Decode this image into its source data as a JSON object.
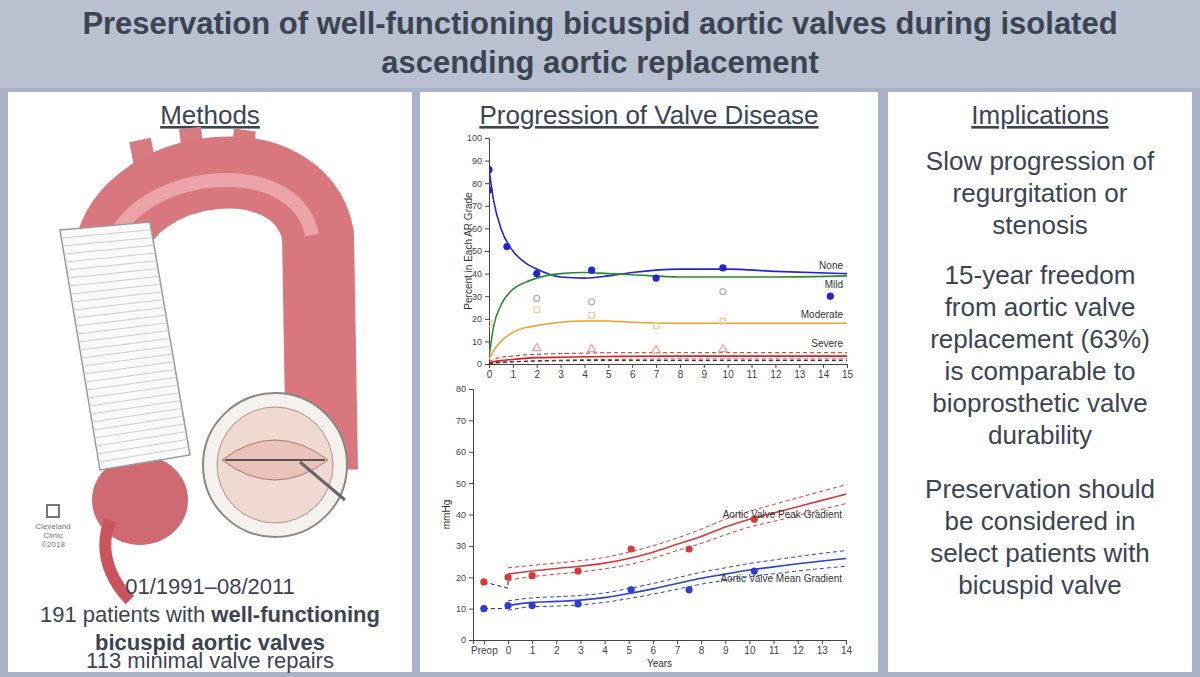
{
  "header": {
    "title": [
      "Preservation of well-functioning bicuspid aortic valves during isolated",
      "ascending aortic replacement"
    ]
  },
  "methods": {
    "heading": "Methods",
    "credit": [
      "Cleveland",
      "Clinic",
      "©2018"
    ],
    "lines": [
      [
        {
          "text": "01/1991–08/2011",
          "bold": false
        }
      ],
      [
        {
          "text": "191 patients with ",
          "bold": false
        },
        {
          "text": "well-functioning",
          "bold": true
        }
      ],
      [
        {
          "text": "bicuspid aortic valves",
          "bold": true
        }
      ],
      [
        {
          "text": "113 minimal valve repairs",
          "bold": false
        }
      ]
    ]
  },
  "chart_panel": {
    "heading": "Progression of Valve Disease"
  },
  "chart_data": [
    {
      "type": "line",
      "y_label": "Percent in Each AR Grade",
      "xlim": [
        0,
        15
      ],
      "xticks": [
        0,
        1,
        2,
        3,
        4,
        5,
        6,
        7,
        8,
        9,
        10,
        11,
        12,
        13,
        14,
        15
      ],
      "ylim": [
        0,
        100
      ],
      "yticks": [
        0,
        10,
        20,
        30,
        40,
        50,
        60,
        70,
        80,
        90,
        100
      ],
      "grid": false,
      "series": [
        {
          "name": "None",
          "color": "#2424d0",
          "line_style": "solid",
          "x": [
            0,
            0.2,
            0.5,
            1,
            1.5,
            2,
            3,
            4,
            5,
            6,
            8,
            10,
            12,
            15
          ],
          "values": [
            86,
            72,
            60,
            50,
            45,
            42,
            38.5,
            38,
            39,
            40.5,
            42,
            42,
            41,
            40
          ]
        },
        {
          "name": "Mild",
          "color": "#2e8b2e",
          "line_style": "solid",
          "x": [
            0,
            0.2,
            0.5,
            1,
            1.5,
            2,
            3,
            4,
            5,
            6,
            8,
            10,
            12,
            15
          ],
          "values": [
            3,
            17,
            26,
            33,
            36,
            38,
            40,
            40.5,
            40,
            39.5,
            38.5,
            38.5,
            38.5,
            39
          ]
        },
        {
          "name": "Moderate",
          "color": "#f0a030",
          "line_style": "solid",
          "x": [
            0,
            0.2,
            0.5,
            1,
            1.5,
            2,
            3,
            4,
            5,
            6,
            8,
            10,
            12,
            15
          ],
          "values": [
            2,
            6,
            10,
            14,
            16,
            17,
            18.5,
            19,
            19,
            18.5,
            18,
            18,
            18,
            18
          ]
        },
        {
          "name": "Severe",
          "color": "#d42020",
          "line_style": "solid",
          "x": [
            0,
            0.2,
            0.5,
            1,
            1.5,
            2,
            3,
            4,
            5,
            6,
            8,
            10,
            12,
            15
          ],
          "values": [
            0.5,
            1,
            1.5,
            2,
            2.5,
            2.8,
            3,
            3.2,
            3.3,
            3.4,
            3.5,
            3.5,
            3.5,
            3.5
          ]
        },
        {
          "color": "#d42020",
          "line_style": "dashed",
          "x": [
            0,
            0.2,
            0.5,
            1,
            1.5,
            2,
            3,
            4,
            5,
            6,
            8,
            10,
            12,
            15
          ],
          "values": [
            1,
            2,
            3,
            3.5,
            4,
            4.3,
            4.6,
            4.8,
            5,
            5,
            5,
            5,
            5,
            5
          ]
        },
        {
          "color": "#d42020",
          "line_style": "dashed",
          "x": [
            0,
            0.2,
            0.5,
            1,
            1.5,
            2,
            3,
            4,
            5,
            6,
            8,
            10,
            12,
            15
          ],
          "values": [
            0,
            0.3,
            0.6,
            0.9,
            1.2,
            1.4,
            1.7,
            1.9,
            2,
            2.1,
            2.2,
            2.2,
            2.2,
            2.2
          ]
        },
        {
          "color": "#222222",
          "line_style": "dashed",
          "x": [
            0,
            0.2,
            0.5,
            1,
            1.5,
            2,
            3,
            4,
            5,
            6,
            8,
            10,
            12,
            15
          ],
          "values": [
            0,
            0.5,
            0.8,
            1,
            1.2,
            1.3,
            1.4,
            1.5,
            1.5,
            1.5,
            1.5,
            1.5,
            1.5,
            1.5
          ]
        },
        {
          "type": "scatter",
          "marker": "circle",
          "color": "#2424d0",
          "x": [
            0,
            0,
            0.75,
            2,
            4.3,
            7,
            9.8,
            14.3
          ],
          "values": [
            86,
            77,
            52,
            40,
            41.5,
            38,
            42.5,
            30
          ]
        },
        {
          "type": "scatter",
          "marker": "circle-open",
          "color": "#a9b8a4",
          "x": [
            2,
            4.3,
            9.8
          ],
          "values": [
            29,
            27.5,
            32
          ]
        },
        {
          "type": "scatter",
          "marker": "square-open",
          "color": "#f3c98e",
          "x": [
            0,
            2,
            4.3,
            7,
            9.8
          ],
          "values": [
            18,
            24,
            21.5,
            17,
            19
          ]
        },
        {
          "type": "scatter",
          "marker": "triangle-open",
          "color": "#eea0a0",
          "x": [
            2,
            4.3,
            7,
            9.8
          ],
          "values": [
            7,
            6.5,
            6,
            6.5
          ]
        }
      ]
    },
    {
      "type": "line",
      "x_label": "Years",
      "y_label": "mmHg",
      "xlim": [
        -1.45,
        14
      ],
      "xticks": [
        {
          "value": -1,
          "label": "Preop"
        },
        0,
        1,
        2,
        3,
        4,
        5,
        6,
        7,
        8,
        9,
        10,
        11,
        12,
        13,
        14
      ],
      "ylim": [
        0,
        80
      ],
      "yticks": [
        0,
        10,
        20,
        30,
        40,
        50,
        60,
        70,
        80
      ],
      "grid": false,
      "series": [
        {
          "name": "Aortic Valve Peak Gradient",
          "color": "#d43a3a",
          "line_style": "solid",
          "x": [
            0,
            1,
            2,
            3,
            4,
            5,
            6,
            7,
            8,
            9,
            10,
            11,
            12,
            13,
            14
          ],
          "values": [
            21,
            22,
            22.8,
            23.5,
            24.5,
            26,
            28,
            30.5,
            33,
            36,
            38.5,
            40.5,
            42.5,
            44.5,
            46.5
          ]
        },
        {
          "color": "#d43a3a",
          "line_style": "dashed",
          "x": [
            0,
            1,
            2,
            3,
            4,
            5,
            6,
            7,
            8,
            9,
            10,
            11,
            12,
            13,
            14
          ],
          "values": [
            23,
            23.8,
            24.5,
            25.3,
            26.3,
            28,
            30,
            32.5,
            35.3,
            38.5,
            41,
            43.2,
            45.3,
            47.4,
            49.5
          ]
        },
        {
          "color": "#d43a3a",
          "line_style": "dashed",
          "x": [
            0,
            1,
            2,
            3,
            4,
            5,
            6,
            7,
            8,
            9,
            10,
            11,
            12,
            13,
            14
          ],
          "values": [
            19,
            20.2,
            21,
            21.7,
            22.7,
            24,
            26,
            28.5,
            30.8,
            33.5,
            36,
            37.8,
            39.7,
            41.6,
            43.5
          ]
        },
        {
          "name": "Aortic Valve Mean Gradient",
          "color": "#2d3ed0",
          "line_style": "solid",
          "x": [
            0,
            1,
            2,
            3,
            4,
            5,
            6,
            7,
            8,
            9,
            10,
            11,
            12,
            13,
            14
          ],
          "values": [
            11,
            12,
            12.3,
            12.7,
            13.5,
            14.8,
            16.3,
            18,
            19.7,
            21,
            22.3,
            23.3,
            24.3,
            25.2,
            26
          ]
        },
        {
          "color": "#2d3ed0",
          "line_style": "dashed",
          "x": [
            0,
            1,
            2,
            3,
            4,
            5,
            6,
            7,
            8,
            9,
            10,
            11,
            12,
            13,
            14
          ],
          "values": [
            12.5,
            13.4,
            13.8,
            14.2,
            15,
            16.4,
            18,
            19.8,
            21.6,
            23,
            24.4,
            25.5,
            26.6,
            27.6,
            28.5
          ]
        },
        {
          "color": "#2d3ed0",
          "line_style": "dashed",
          "x": [
            0,
            1,
            2,
            3,
            4,
            5,
            6,
            7,
            8,
            9,
            10,
            11,
            12,
            13,
            14
          ],
          "values": [
            9.5,
            10.6,
            10.8,
            11.2,
            12,
            13.2,
            14.6,
            16.2,
            17.8,
            19,
            20.2,
            21.1,
            22,
            22.8,
            23.5
          ]
        },
        {
          "color": "#222222",
          "line_style": "dashed",
          "x": [
            -1,
            0,
            0
          ],
          "values": [
            18.5,
            16.5,
            20
          ]
        },
        {
          "color": "#222222",
          "line_style": "dashed",
          "x": [
            -1,
            0,
            0
          ],
          "values": [
            10,
            10,
            11
          ]
        },
        {
          "type": "scatter",
          "marker": "circle",
          "color": "#d43a3a",
          "x": [
            -1,
            0,
            1,
            2.9,
            5.1,
            7.5,
            10.2
          ],
          "values": [
            18.5,
            20,
            20.5,
            22,
            29,
            29,
            38.5
          ]
        },
        {
          "type": "scatter",
          "marker": "circle",
          "color": "#2d3ed0",
          "x": [
            -1,
            0,
            1,
            2.9,
            5.1,
            7.5,
            10.2
          ],
          "values": [
            10,
            11,
            11,
            11.5,
            16,
            16,
            22
          ]
        }
      ]
    }
  ],
  "implications": {
    "heading": "Implications",
    "items": [
      [
        "Slow progression of",
        "regurgitation or",
        "stenosis"
      ],
      [
        "15-year freedom",
        "from aortic valve",
        "replacement (63%)",
        "is comparable to",
        "bioprosthetic valve",
        "durability"
      ],
      [
        "Preservation should",
        "be considered in",
        "select patients with",
        "bicuspid valve"
      ]
    ]
  }
}
